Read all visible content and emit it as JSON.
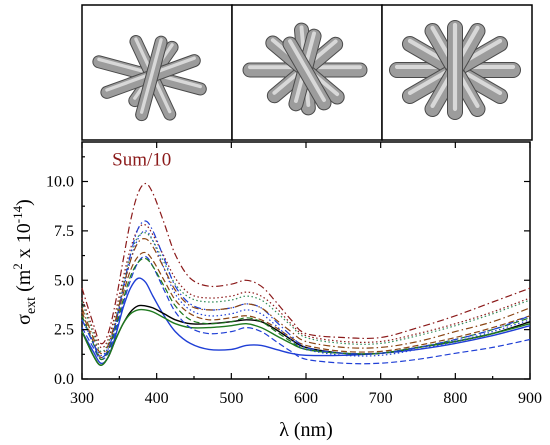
{
  "chart_data": {
    "type": "line",
    "title": "",
    "xlabel": "λ (nm)",
    "ylabel": "σext (m² x 10⁻¹⁴)",
    "ylabel_parts": {
      "main": "σ",
      "sub": "ext",
      "paren_open": " (m",
      "sq": "2",
      "mid": " x 10",
      "exp": "-14",
      "paren_close": ")"
    },
    "xlim": [
      300,
      900
    ],
    "ylim": [
      0,
      12
    ],
    "x_ticks": [
      300,
      400,
      500,
      600,
      700,
      800,
      900
    ],
    "x_tick_labels": [
      "300",
      "400",
      "500",
      "600",
      "700",
      "800",
      "900"
    ],
    "y_ticks": [
      0,
      2.5,
      5,
      7.5,
      10
    ],
    "y_tick_labels": [
      "0.0",
      "2.5",
      "5.0",
      "7.5",
      "10.0"
    ],
    "grid": false,
    "annotations": [
      {
        "text": "Sum/10",
        "x": 380,
        "y": 10.8,
        "color": "#8b1a1a"
      }
    ],
    "insets": [
      "six-rod-cluster",
      "eight-rod-cluster",
      "twelve-rod-cluster"
    ],
    "series": [
      {
        "color": "#1f3fd6",
        "dash": "solid",
        "x": [
          300,
          315,
          325,
          335,
          345,
          355,
          365,
          375,
          385,
          395,
          410,
          425,
          445,
          470,
          500,
          520,
          540,
          560,
          580,
          600,
          650,
          700,
          750,
          800,
          850,
          900
        ],
        "y": [
          2.4,
          1.4,
          0.8,
          1.1,
          2.2,
          3.6,
          4.6,
          5.1,
          4.9,
          4.2,
          3.2,
          2.4,
          1.8,
          1.5,
          1.5,
          1.7,
          1.7,
          1.5,
          1.3,
          1.2,
          1.2,
          1.3,
          1.5,
          1.8,
          2.2,
          2.7
        ]
      },
      {
        "color": "#000000",
        "dash": "solid",
        "x": [
          300,
          315,
          325,
          335,
          345,
          355,
          365,
          375,
          385,
          395,
          410,
          425,
          445,
          470,
          500,
          520,
          540,
          560,
          580,
          600,
          650,
          700,
          750,
          800,
          850,
          900
        ],
        "y": [
          2.4,
          1.2,
          0.7,
          1.1,
          2.0,
          2.8,
          3.4,
          3.7,
          3.7,
          3.6,
          3.3,
          3.0,
          2.8,
          2.8,
          2.9,
          3.0,
          2.9,
          2.5,
          2.0,
          1.6,
          1.3,
          1.3,
          1.6,
          1.9,
          2.3,
          2.9
        ]
      },
      {
        "color": "#1f7a1f",
        "dash": "solid",
        "x": [
          300,
          315,
          325,
          335,
          345,
          355,
          365,
          375,
          385,
          395,
          410,
          425,
          445,
          470,
          500,
          520,
          540,
          560,
          580,
          600,
          650,
          700,
          750,
          800,
          850,
          900
        ],
        "y": [
          2.4,
          1.2,
          0.7,
          1.1,
          2.0,
          2.8,
          3.3,
          3.5,
          3.5,
          3.4,
          3.1,
          2.8,
          2.6,
          2.6,
          2.7,
          2.8,
          2.6,
          2.2,
          1.8,
          1.5,
          1.3,
          1.3,
          1.6,
          1.9,
          2.3,
          2.8
        ]
      },
      {
        "color": "#1f3fd6",
        "dash": "dash",
        "x": [
          300,
          315,
          325,
          335,
          345,
          355,
          365,
          375,
          385,
          395,
          410,
          425,
          445,
          470,
          500,
          520,
          540,
          560,
          580,
          600,
          650,
          700,
          750,
          800,
          850,
          900
        ],
        "y": [
          2.6,
          1.6,
          1.0,
          1.3,
          2.4,
          3.8,
          5.0,
          5.9,
          6.2,
          5.7,
          4.5,
          3.4,
          2.6,
          2.3,
          2.4,
          2.6,
          2.4,
          1.9,
          1.4,
          1.0,
          0.8,
          0.8,
          1.0,
          1.3,
          1.6,
          2.0
        ]
      },
      {
        "color": "#8b4513",
        "dash": "dash",
        "x": [
          300,
          315,
          325,
          335,
          345,
          355,
          365,
          375,
          385,
          395,
          410,
          425,
          445,
          470,
          500,
          520,
          540,
          560,
          580,
          600,
          650,
          700,
          750,
          800,
          850,
          900
        ],
        "y": [
          3.4,
          1.9,
          1.1,
          1.5,
          2.8,
          4.3,
          5.5,
          6.2,
          6.4,
          6.0,
          5.0,
          4.0,
          3.3,
          3.0,
          3.1,
          3.2,
          3.0,
          2.6,
          2.1,
          1.7,
          1.4,
          1.4,
          1.7,
          2.1,
          2.6,
          3.2
        ]
      },
      {
        "color": "#1f7a1f",
        "dash": "dash",
        "x": [
          300,
          315,
          325,
          335,
          345,
          355,
          365,
          375,
          385,
          395,
          410,
          425,
          445,
          470,
          500,
          520,
          540,
          560,
          580,
          600,
          650,
          700,
          750,
          800,
          850,
          900
        ],
        "y": [
          3.2,
          1.8,
          1.0,
          1.4,
          2.6,
          4.0,
          5.2,
          5.9,
          6.1,
          5.7,
          4.7,
          3.7,
          3.0,
          2.8,
          2.9,
          3.1,
          2.9,
          2.4,
          1.9,
          1.5,
          1.3,
          1.3,
          1.6,
          2.0,
          2.5,
          3.1
        ]
      },
      {
        "color": "#1f3fd6",
        "dash": "dot",
        "x": [
          300,
          315,
          325,
          335,
          345,
          355,
          365,
          375,
          385,
          395,
          410,
          425,
          445,
          470,
          500,
          520,
          540,
          560,
          580,
          600,
          650,
          700,
          750,
          800,
          850,
          900
        ],
        "y": [
          3.0,
          1.9,
          1.2,
          1.6,
          2.8,
          4.5,
          6.0,
          7.1,
          7.5,
          7.0,
          5.6,
          4.3,
          3.5,
          3.2,
          3.3,
          3.5,
          3.3,
          2.7,
          2.0,
          1.5,
          1.2,
          1.2,
          1.5,
          1.9,
          2.4,
          3.0
        ]
      },
      {
        "color": "#2e8b57",
        "dash": "dot",
        "x": [
          300,
          315,
          325,
          335,
          345,
          355,
          365,
          375,
          385,
          395,
          410,
          425,
          445,
          470,
          500,
          520,
          540,
          560,
          580,
          600,
          650,
          700,
          750,
          800,
          850,
          900
        ],
        "y": [
          3.9,
          2.3,
          1.4,
          1.8,
          3.1,
          4.8,
          6.3,
          7.2,
          7.4,
          7.0,
          5.9,
          4.8,
          4.1,
          3.9,
          4.0,
          4.2,
          4.0,
          3.4,
          2.7,
          2.1,
          1.8,
          1.8,
          2.2,
          2.7,
          3.3,
          4.0
        ]
      },
      {
        "color": "#8b1a1a",
        "dash": "dot",
        "x": [
          300,
          315,
          325,
          335,
          345,
          355,
          365,
          375,
          385,
          395,
          410,
          425,
          445,
          470,
          500,
          520,
          540,
          560,
          580,
          600,
          650,
          700,
          750,
          800,
          850,
          900
        ],
        "y": [
          4.1,
          2.5,
          1.6,
          2.0,
          3.4,
          5.1,
          6.6,
          7.6,
          7.8,
          7.3,
          6.2,
          5.1,
          4.3,
          4.1,
          4.2,
          4.4,
          4.2,
          3.6,
          2.8,
          2.2,
          1.9,
          1.9,
          2.3,
          2.8,
          3.4,
          4.1
        ]
      },
      {
        "color": "#8b1a1a",
        "dash": "dashdot",
        "x": [
          300,
          315,
          325,
          335,
          345,
          355,
          365,
          375,
          385,
          395,
          410,
          425,
          445,
          470,
          500,
          520,
          540,
          560,
          580,
          600,
          650,
          700,
          750,
          800,
          850,
          900
        ],
        "y": [
          4.6,
          2.8,
          1.8,
          2.3,
          3.9,
          6.0,
          8.0,
          9.4,
          9.9,
          9.4,
          7.9,
          6.3,
          5.1,
          4.7,
          4.8,
          5.0,
          4.7,
          3.9,
          3.0,
          2.3,
          2.1,
          2.1,
          2.6,
          3.2,
          3.9,
          4.6
        ]
      },
      {
        "color": "#1f3fd6",
        "dash": "dashdot",
        "x": [
          300,
          315,
          325,
          335,
          345,
          355,
          365,
          375,
          385,
          395,
          410,
          425,
          445,
          470,
          500,
          520,
          540,
          560,
          580,
          600,
          650,
          700,
          750,
          800,
          850,
          900
        ],
        "y": [
          3.0,
          1.8,
          1.1,
          1.5,
          2.8,
          4.6,
          6.3,
          7.6,
          8.0,
          7.5,
          6.1,
          4.7,
          3.8,
          3.5,
          3.6,
          3.8,
          3.6,
          2.9,
          2.2,
          1.6,
          1.3,
          1.3,
          1.6,
          2.0,
          2.5,
          3.2
        ]
      },
      {
        "color": "#8b4513",
        "dash": "dashdot",
        "x": [
          300,
          315,
          325,
          335,
          345,
          355,
          365,
          375,
          385,
          395,
          410,
          425,
          445,
          470,
          500,
          520,
          540,
          560,
          580,
          600,
          650,
          700,
          750,
          800,
          850,
          900
        ],
        "y": [
          3.6,
          2.1,
          1.3,
          1.7,
          3.0,
          4.6,
          6.0,
          6.9,
          7.1,
          6.7,
          5.6,
          4.5,
          3.7,
          3.5,
          3.6,
          3.8,
          3.6,
          3.0,
          2.4,
          1.9,
          1.6,
          1.6,
          1.9,
          2.4,
          2.9,
          3.6
        ]
      }
    ]
  }
}
